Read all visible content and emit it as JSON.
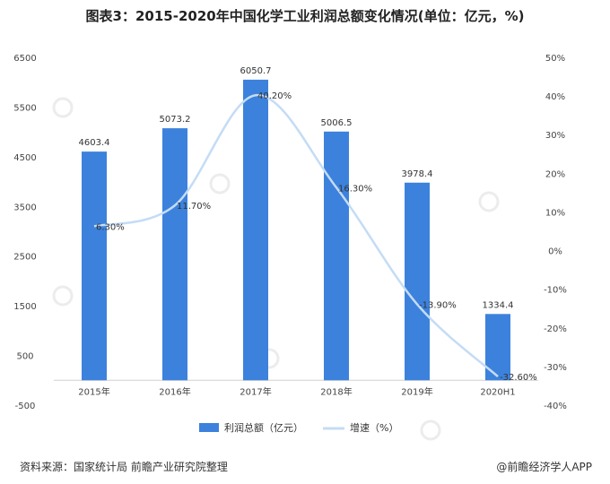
{
  "header": {
    "title": "图表3：2015-2020年中国化学工业利润总额变化情况(单位：亿元，%)"
  },
  "footer": {
    "source": "资料来源：国家统计局 前瞻产业研究院整理",
    "brand": "@前瞻经济学人APP"
  },
  "colors": {
    "bar": "#3c82dc",
    "line": "#c4dcf5"
  },
  "chart_data": {
    "type": "bar",
    "title": "图表3：2015-2020年中国化学工业利润总额变化情况(单位：亿元，%)",
    "categories": [
      "2015年",
      "2016年",
      "2017年",
      "2018年",
      "2019年",
      "2020H1"
    ],
    "series": [
      {
        "name": "利润总额（亿元）",
        "type": "bar",
        "axis": "left",
        "values": [
          4603.4,
          5073.2,
          6050.7,
          5006.5,
          3978.4,
          1334.4
        ],
        "labels": [
          "4603.4",
          "5073.2",
          "6050.7",
          "5006.5",
          "3978.4",
          "1334.4"
        ]
      },
      {
        "name": "增速（%）",
        "type": "line",
        "axis": "right",
        "smooth": true,
        "values": [
          6.3,
          11.7,
          40.2,
          16.3,
          -13.9,
          -32.6
        ],
        "labels": [
          "6.30%",
          "11.70%",
          "40.20%",
          "16.30%",
          "-13.90%",
          "-32.60%"
        ]
      }
    ],
    "y_left": {
      "min": -500,
      "max": 6500,
      "ticks": [
        "6500",
        "5500",
        "4500",
        "3500",
        "2500",
        "1500",
        "500",
        "-500"
      ]
    },
    "y_right": {
      "min": -40,
      "max": 50,
      "ticks": [
        "50%",
        "40%",
        "30%",
        "20%",
        "10%",
        "0%",
        "-10%",
        "-20%",
        "-30%",
        "-40%"
      ]
    },
    "grid": false,
    "legend": "bottom"
  }
}
